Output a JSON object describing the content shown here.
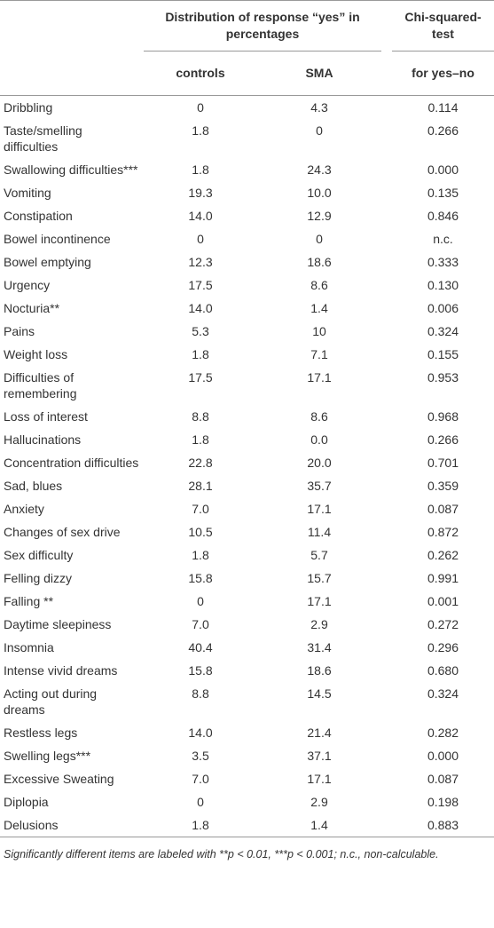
{
  "header": {
    "group_title": "Distribution of response “yes” in percentages",
    "chi_title": "Chi-squared-test",
    "col_labels": [
      "controls",
      "SMA",
      "for yes–no"
    ]
  },
  "table": {
    "rows": [
      [
        "Dribbling",
        "0",
        "4.3",
        "0.114"
      ],
      [
        "Taste/smelling difficulties",
        "1.8",
        "0",
        "0.266"
      ],
      [
        "Swallowing difficulties***",
        "1.8",
        "24.3",
        "0.000"
      ],
      [
        "Vomiting",
        "19.3",
        "10.0",
        "0.135"
      ],
      [
        "Constipation",
        "14.0",
        "12.9",
        "0.846"
      ],
      [
        "Bowel incontinence",
        "0",
        "0",
        "n.c."
      ],
      [
        "Bowel emptying",
        "12.3",
        "18.6",
        "0.333"
      ],
      [
        "Urgency",
        "17.5",
        "8.6",
        "0.130"
      ],
      [
        "Nocturia**",
        "14.0",
        "1.4",
        "0.006"
      ],
      [
        "Pains",
        "5.3",
        "10",
        "0.324"
      ],
      [
        "Weight loss",
        "1.8",
        "7.1",
        "0.155"
      ],
      [
        "Difficulties of remembering",
        "17.5",
        "17.1",
        "0.953"
      ],
      [
        "Loss of interest",
        "8.8",
        "8.6",
        "0.968"
      ],
      [
        "Hallucinations",
        "1.8",
        "0.0",
        "0.266"
      ],
      [
        "Concentration difficulties",
        "22.8",
        "20.0",
        "0.701"
      ],
      [
        "Sad, blues",
        "28.1",
        "35.7",
        "0.359"
      ],
      [
        "Anxiety",
        "7.0",
        "17.1",
        "0.087"
      ],
      [
        "Changes of sex drive",
        "10.5",
        "11.4",
        "0.872"
      ],
      [
        "Sex difficulty",
        "1.8",
        "5.7",
        "0.262"
      ],
      [
        "Felling dizzy",
        "15.8",
        "15.7",
        "0.991"
      ],
      [
        "Falling **",
        "0",
        "17.1",
        "0.001"
      ],
      [
        "Daytime sleepiness",
        "7.0",
        "2.9",
        "0.272"
      ],
      [
        "Insomnia",
        "40.4",
        "31.4",
        "0.296"
      ],
      [
        "Intense vivid dreams",
        "15.8",
        "18.6",
        "0.680"
      ],
      [
        "Acting out during dreams",
        "8.8",
        "14.5",
        "0.324"
      ],
      [
        "Restless legs",
        "14.0",
        "21.4",
        "0.282"
      ],
      [
        "Swelling legs***",
        "3.5",
        "37.1",
        "0.000"
      ],
      [
        "Excessive Sweating",
        "7.0",
        "17.1",
        "0.087"
      ],
      [
        "Diplopia",
        "0",
        "2.9",
        "0.198"
      ],
      [
        "Delusions",
        "1.8",
        "1.4",
        "0.883"
      ]
    ]
  },
  "footnote": "Significantly different items are labeled with **p < 0.01, ***p < 0.001; n.c., non-calculable."
}
